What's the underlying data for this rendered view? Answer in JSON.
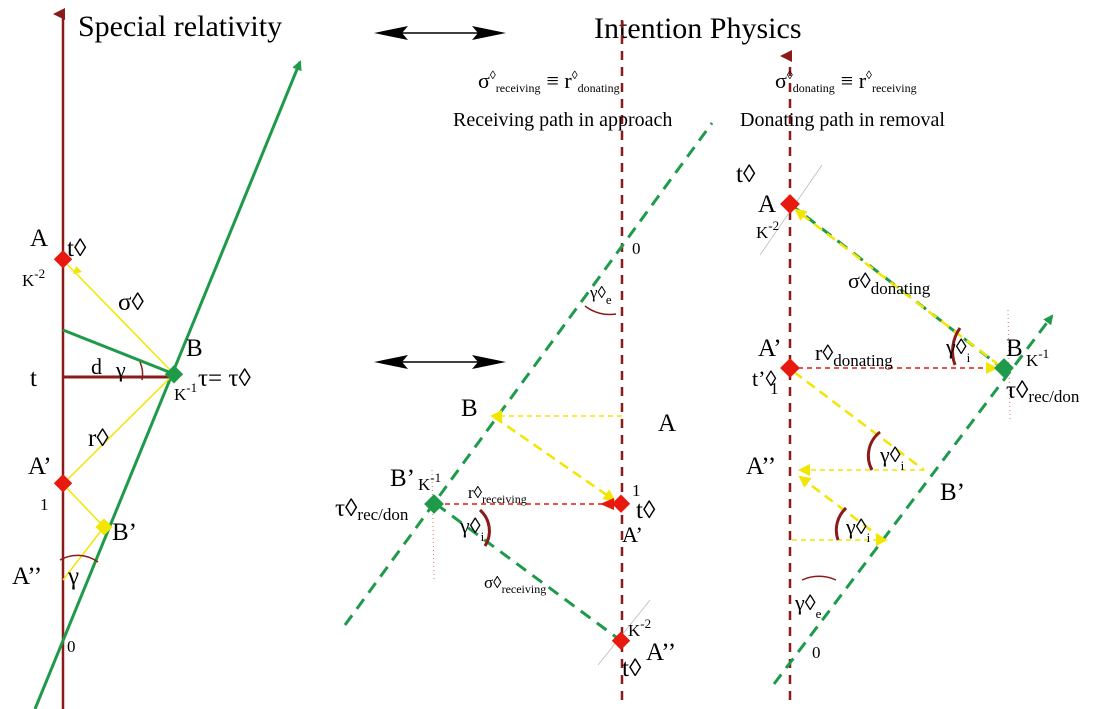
{
  "titles": {
    "left": "Special relativity",
    "right": "Intention Physics"
  },
  "colors": {
    "world_line": "#8b1a1a",
    "light_path": "#1e9a4a",
    "signal": "#f2e600",
    "event_marker": "#e8190f",
    "observer_marker": "#1e9a4a",
    "arrow": "#000000"
  },
  "headers": {
    "receiving": {
      "sigma": "σ",
      "diamond": "◊",
      "sub_receiving": "receiving",
      "equiv": "≡ r",
      "sub_donating": "donating",
      "caption": "Receiving path in approach"
    },
    "donating": {
      "sigma": "σ",
      "diamond": "◊",
      "sub_donating": "donating",
      "equiv": "≡ r",
      "sub_receiving": "receiving",
      "caption": "Donating path in removal"
    }
  },
  "left_panel": {
    "A": "A",
    "t_diamond": "t◊",
    "K_neg2": "K",
    "K_neg2_exp": "-2",
    "sigma": "σ◊",
    "B": "B",
    "d": "d",
    "gamma": "γ",
    "t": "t",
    "tau": "τ= τ◊",
    "K_neg1": "K",
    "K_neg1_exp": "-1",
    "r": "r◊",
    "A_prime": "A’",
    "one": "1",
    "B_prime": "B’",
    "A_dprime": "A’’",
    "gamma_bottom": "γ",
    "zero": "0"
  },
  "middle_panel": {
    "zero": "0",
    "gamma_e": "γ◊",
    "gamma_e_sub": "e",
    "B": "B",
    "A": "A",
    "B_prime": "B’",
    "K_neg1": "K",
    "K_neg1_exp": "-1",
    "tau": "τ◊",
    "tau_sub": "rec/don",
    "r_receiving": "r◊",
    "r_sub": "receiving",
    "gamma_i": "γ◊",
    "gamma_i_sub": "i",
    "one": "1",
    "t_diamond": "t◊",
    "A_prime": "A’",
    "sigma_receiving": "σ◊",
    "sigma_sub": "receiving",
    "K_neg2": "K",
    "K_neg2_exp": "-2",
    "t_bottom": "t◊",
    "A_dprime": "A’’"
  },
  "right_panel": {
    "t_diamond": "t◊",
    "A": "A",
    "K_neg2": "K",
    "K_neg2_exp": "-2",
    "sigma_donating": "σ◊",
    "sigma_sub": "donating",
    "A_prime": "A’",
    "r_donating": "r◊",
    "r_sub": "donating",
    "gamma_i": "γ◊",
    "gamma_i_sub": "i",
    "B": "B",
    "K_neg1": "K",
    "K_neg1_exp": "-1",
    "t_prime": "t’◊",
    "one": "1",
    "tau": "τ◊",
    "tau_sub": "rec/don",
    "A_dprime": "A’’",
    "gamma_i2": "γ◊",
    "gamma_i2_sub": "i",
    "B_prime": "B’",
    "gamma_i3": "γ◊",
    "gamma_i3_sub": "i",
    "gamma_e": "γ◊",
    "gamma_e_sub": "e",
    "zero": "0"
  }
}
